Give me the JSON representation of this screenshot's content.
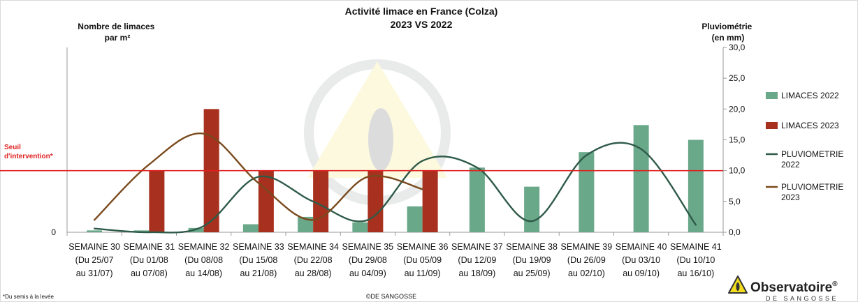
{
  "chart_data": {
    "type": "bar",
    "title": "Activité limace en France (Colza)",
    "subtitle": "2023 VS 2022",
    "ylabel_left": "Nombre de limaces par m²",
    "ylabel_right": "Pluviométrie (en mm)",
    "left_axis_ticks": [
      "0"
    ],
    "right_ylim": [
      0,
      30
    ],
    "right_ticks": [
      "0,0",
      "5,0",
      "10,0",
      "15,0",
      "20,0",
      "25,0",
      "30,0"
    ],
    "threshold_label": "Seuil d'intervention*",
    "threshold_value": 10,
    "categories": [
      "SEMAINE 30 (Du 25/07 au 31/07)",
      "SEMAINE 31 (Du 01/08 au 07/08)",
      "SEMAINE 32 (Du 08/08 au 14/08)",
      "SEMAINE 33 (Du 15/08 au 21/08)",
      "SEMAINE 34 (Du 22/08 au 28/08)",
      "SEMAINE 35 (Du 29/08 au 04/09)",
      "SEMAINE 36 (Du 05/09 au 11/09)",
      "SEMAINE 37 (Du 12/09 au 18/09)",
      "SEMAINE 38 (Du 19/09 au 25/09)",
      "SEMAINE 39 (Du 26/09 au 02/10)",
      "SEMAINE 40 (Du 03/10 au 09/10)",
      "SEMAINE 41 (Du 10/10 au 16/10)"
    ],
    "category_lines": [
      [
        "SEMAINE 30",
        "(Du 25/07",
        "au 31/07)"
      ],
      [
        "SEMAINE 31",
        "(Du 01/08",
        "au 07/08)"
      ],
      [
        "SEMAINE 32",
        "(Du 08/08",
        "au 14/08)"
      ],
      [
        "SEMAINE 33",
        "(Du 15/08",
        "au 21/08)"
      ],
      [
        "SEMAINE 34",
        "(Du 22/08",
        "au 28/08)"
      ],
      [
        "SEMAINE 35",
        "(Du 29/08",
        "au 04/09)"
      ],
      [
        "SEMAINE 36",
        "(Du 05/09",
        "au 11/09)"
      ],
      [
        "SEMAINE 37",
        "(Du 12/09",
        "au 18/09)"
      ],
      [
        "SEMAINE 38",
        "(Du 19/09",
        "au 25/09)"
      ],
      [
        "SEMAINE 39",
        "(Du 26/09",
        "au 02/10)"
      ],
      [
        "SEMAINE 40",
        "(Du 03/10",
        "au 09/10)"
      ],
      [
        "SEMAINE 41",
        "(Du 10/10",
        "au 16/10)"
      ]
    ],
    "series": [
      {
        "name": "LIMACES 2022",
        "kind": "bar",
        "axis": "right",
        "color": "#6aa88a",
        "values": [
          0.3,
          0.3,
          0.7,
          1.3,
          2.5,
          1.6,
          4.2,
          10.5,
          7.4,
          13.0,
          17.4,
          15.0
        ]
      },
      {
        "name": "LIMACES 2023",
        "kind": "bar",
        "axis": "right",
        "color": "#a8301e",
        "values": [
          null,
          10.0,
          20.0,
          10.0,
          10.0,
          10.0,
          10.0,
          null,
          null,
          null,
          null,
          null
        ]
      },
      {
        "name": "PLUVIOMETRIE 2022",
        "kind": "line",
        "axis": "right",
        "color": "#2e5a48",
        "values": [
          0.6,
          0,
          1.0,
          9.0,
          5.0,
          2.0,
          11.6,
          10.5,
          1.8,
          12.5,
          13.5,
          1.2
        ]
      },
      {
        "name": "PLUVIOMETRIE 2023",
        "kind": "line",
        "axis": "right",
        "color": "#7a4a1e",
        "values": [
          2.0,
          11.0,
          16.0,
          8.0,
          2.0,
          9.0,
          7.0,
          null,
          null,
          null,
          null,
          null
        ]
      }
    ],
    "legend_lines": [
      [
        "LIMACES 2022"
      ],
      [
        "LIMACES 2023"
      ],
      [
        "PLUVIOMETRIE",
        "2022"
      ],
      [
        "PLUVIOMETRIE",
        "2023"
      ]
    ],
    "legend_position": "right",
    "grid": false
  },
  "footer": {
    "note": "*Du semis à la levée",
    "copyright": "©DE SANGOSSE"
  },
  "logo": {
    "name": "Observatoire",
    "registered": "®",
    "tagline": "DE SANGOSSE",
    "icon": "warning-slug-icon"
  },
  "colors": {
    "threshold": "#e02020",
    "axis": "#555555"
  }
}
